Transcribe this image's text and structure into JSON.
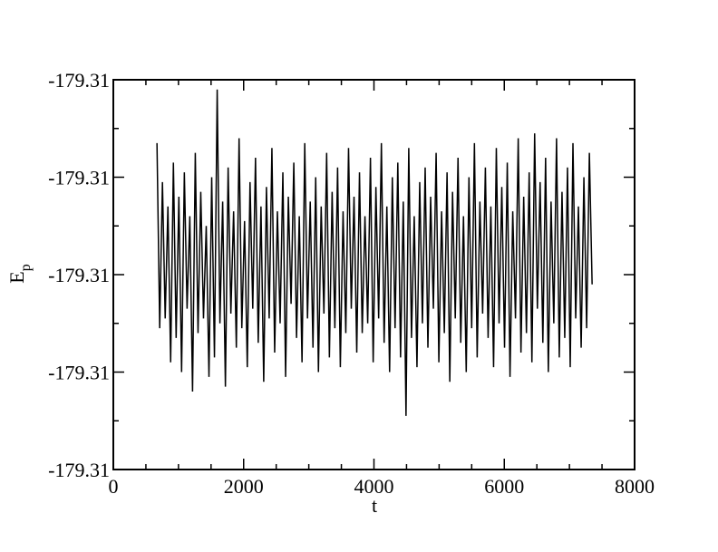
{
  "chart_data": {
    "type": "line",
    "xlabel": "t",
    "ylabel": {
      "text": "E",
      "subscript": "p"
    },
    "xlim": [
      0,
      8000
    ],
    "xticks": [
      0,
      2000,
      4000,
      6000,
      8000
    ],
    "xminorticks": [
      500,
      1000,
      1500,
      2500,
      3000,
      3500,
      4500,
      5000,
      5500,
      6500,
      7000,
      7500
    ],
    "ylim": [
      -179.3108,
      -179.31
    ],
    "yticks": [
      {
        "value": -179.3108,
        "label": "-179.31"
      },
      {
        "value": -179.3106,
        "label": "-179.31"
      },
      {
        "value": -179.3104,
        "label": "-179.31"
      },
      {
        "value": -179.3102,
        "label": "-179.31"
      },
      {
        "value": -179.31,
        "label": "-179.31"
      }
    ],
    "yminorticks": [
      -179.3107,
      -179.3105,
      -179.3103,
      -179.3101
    ],
    "series": [
      {
        "color": "#000000",
        "x": [
          670,
          712,
          754,
          796,
          838,
          880,
          922,
          964,
          1006,
          1048,
          1090,
          1132,
          1174,
          1216,
          1258,
          1300,
          1342,
          1384,
          1426,
          1468,
          1510,
          1552,
          1594,
          1636,
          1678,
          1720,
          1762,
          1804,
          1846,
          1888,
          1930,
          1972,
          2014,
          2056,
          2098,
          2140,
          2182,
          2224,
          2266,
          2308,
          2350,
          2392,
          2434,
          2476,
          2518,
          2560,
          2602,
          2644,
          2686,
          2728,
          2770,
          2812,
          2854,
          2896,
          2938,
          2980,
          3022,
          3064,
          3106,
          3148,
          3190,
          3232,
          3274,
          3316,
          3358,
          3400,
          3442,
          3484,
          3526,
          3568,
          3610,
          3652,
          3694,
          3736,
          3778,
          3820,
          3862,
          3904,
          3946,
          3988,
          4030,
          4072,
          4114,
          4156,
          4198,
          4240,
          4282,
          4324,
          4366,
          4408,
          4450,
          4492,
          4534,
          4576,
          4618,
          4660,
          4702,
          4744,
          4786,
          4828,
          4870,
          4912,
          4954,
          4996,
          5038,
          5080,
          5122,
          5164,
          5206,
          5248,
          5290,
          5332,
          5374,
          5416,
          5458,
          5500,
          5542,
          5584,
          5626,
          5668,
          5710,
          5752,
          5794,
          5836,
          5878,
          5920,
          5962,
          6004,
          6046,
          6088,
          6130,
          6172,
          6214,
          6256,
          6298,
          6340,
          6382,
          6424,
          6466,
          6508,
          6550,
          6592,
          6634,
          6676,
          6718,
          6760,
          6802,
          6844,
          6886,
          6928,
          6970,
          7012,
          7054,
          7096,
          7138,
          7180,
          7222,
          7264,
          7306,
          7348
        ],
        "values": [
          -179.31013,
          -179.31051,
          -179.31021,
          -179.31049,
          -179.31026,
          -179.31058,
          -179.31017,
          -179.31053,
          -179.31024,
          -179.3106,
          -179.31019,
          -179.31047,
          -179.31028,
          -179.31064,
          -179.31015,
          -179.31052,
          -179.31023,
          -179.31049,
          -179.3103,
          -179.31061,
          -179.3102,
          -179.31057,
          -179.31002,
          -179.3105,
          -179.31025,
          -179.31063,
          -179.31018,
          -179.31048,
          -179.31027,
          -179.31055,
          -179.31012,
          -179.31051,
          -179.31029,
          -179.31059,
          -179.31021,
          -179.31047,
          -179.31016,
          -179.31054,
          -179.31026,
          -179.31062,
          -179.31022,
          -179.31049,
          -179.31014,
          -179.31056,
          -179.31027,
          -179.3105,
          -179.31019,
          -179.31061,
          -179.31024,
          -179.31046,
          -179.31017,
          -179.31053,
          -179.31028,
          -179.31058,
          -179.31013,
          -179.31049,
          -179.31025,
          -179.31055,
          -179.3102,
          -179.3106,
          -179.31026,
          -179.31048,
          -179.31015,
          -179.31057,
          -179.31023,
          -179.31051,
          -179.31018,
          -179.31059,
          -179.31027,
          -179.31052,
          -179.31014,
          -179.31047,
          -179.31024,
          -179.31056,
          -179.31019,
          -179.31052,
          -179.31028,
          -179.3105,
          -179.31016,
          -179.31058,
          -179.31022,
          -179.31049,
          -179.31013,
          -179.31054,
          -179.31026,
          -179.3106,
          -179.3102,
          -179.31051,
          -179.31017,
          -179.31057,
          -179.31025,
          -179.31069,
          -179.31014,
          -179.31053,
          -179.31028,
          -179.31059,
          -179.31021,
          -179.3105,
          -179.31018,
          -179.31055,
          -179.31024,
          -179.31047,
          -179.31015,
          -179.31058,
          -179.31027,
          -179.31052,
          -179.31019,
          -179.31062,
          -179.31023,
          -179.31049,
          -179.31016,
          -179.31054,
          -179.31028,
          -179.3106,
          -179.3102,
          -179.31051,
          -179.31013,
          -179.31057,
          -179.31025,
          -179.31048,
          -179.31018,
          -179.31053,
          -179.31026,
          -179.31059,
          -179.31014,
          -179.3105,
          -179.31022,
          -179.31055,
          -179.31017,
          -179.31061,
          -179.31027,
          -179.31049,
          -179.31012,
          -179.31056,
          -179.31024,
          -179.31052,
          -179.31019,
          -179.31058,
          -179.31011,
          -179.31047,
          -179.31021,
          -179.31054,
          -179.31016,
          -179.3106,
          -179.31025,
          -179.3105,
          -179.31012,
          -179.31057,
          -179.31023,
          -179.31053,
          -179.31018,
          -179.31059,
          -179.31013,
          -179.31049,
          -179.31026,
          -179.31055,
          -179.3102,
          -179.31051,
          -179.31015,
          -179.31042
        ]
      }
    ]
  }
}
